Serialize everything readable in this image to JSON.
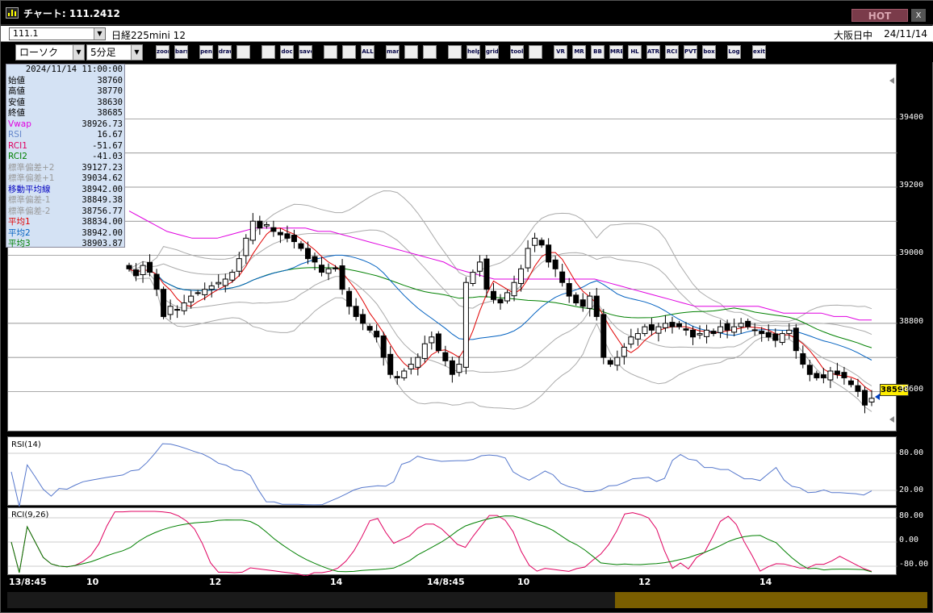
{
  "window": {
    "title": "チャート: 111.2412",
    "hot_label": "HOT",
    "close_label": "x"
  },
  "header": {
    "symbol_code": "111.1",
    "symbol_name": "日経225mini 12",
    "exchange": "大阪日中",
    "date": "24/11/14"
  },
  "toolbar": {
    "chart_type": "ローソク",
    "timeframe": "5分足",
    "buttons": [
      "zoom",
      "bars",
      "pen",
      "draw",
      "arrow",
      "refresh",
      "doc",
      "save",
      "candle-a",
      "candle-b",
      "ALL",
      "mark",
      "search",
      "chart",
      "scissors",
      "help",
      "grid",
      "tool",
      "palette",
      "VR",
      "MR",
      "BB",
      "MRE",
      "HL",
      "ATR",
      "RCI",
      "PVT",
      "box",
      "Log",
      "exit"
    ]
  },
  "info_panel": {
    "timestamp": "2024/11/14 11:00:00",
    "rows": [
      {
        "label": "始値",
        "value": "38760",
        "color": "#000000"
      },
      {
        "label": "高値",
        "value": "38770",
        "color": "#000000"
      },
      {
        "label": "安値",
        "value": "38630",
        "color": "#000000"
      },
      {
        "label": "終値",
        "value": "38685",
        "color": "#000000"
      },
      {
        "label": "Vwap",
        "value": "38926.73",
        "color": "#e000e0"
      },
      {
        "label": "RSI",
        "value": "16.67",
        "color": "#6688cc"
      },
      {
        "label": "RCI1",
        "value": "-51.67",
        "color": "#e00060"
      },
      {
        "label": "RCI2",
        "value": "-41.03",
        "color": "#008000"
      },
      {
        "label": "標準偏差+2",
        "value": "39127.23",
        "color": "#9a9a9a"
      },
      {
        "label": "標準偏差+1",
        "value": "39034.62",
        "color": "#9a9a9a"
      },
      {
        "label": "移動平均線",
        "value": "38942.00",
        "color": "#0000c0"
      },
      {
        "label": "標準偏差-1",
        "value": "38849.38",
        "color": "#9a9a9a"
      },
      {
        "label": "標準偏差-2",
        "value": "38756.77",
        "color": "#9a9a9a"
      },
      {
        "label": "平均1",
        "value": "38834.00",
        "color": "#e00000"
      },
      {
        "label": "平均2",
        "value": "38942.00",
        "color": "#0060c0"
      },
      {
        "label": "平均3",
        "value": "38903.87",
        "color": "#008000"
      }
    ]
  },
  "price_axis": [
    "39400",
    "39200",
    "39000",
    "38800",
    "38600"
  ],
  "last_price": "38590",
  "rsi_panel": {
    "label": "RSI(14)",
    "axis": [
      "80.00",
      "20.00"
    ]
  },
  "rci_panel": {
    "label": "RCI(9,26)",
    "axis": [
      "80.00",
      "0.00",
      "-80.00"
    ]
  },
  "time_axis": [
    "13/8:45",
    "10",
    "12",
    "14",
    "14/8:45",
    "10",
    "12",
    "14"
  ],
  "chart_data": {
    "type": "candlestick",
    "ylim": [
      38480,
      39560
    ],
    "closes": [
      38960,
      38940,
      38970,
      38950,
      38900,
      38820,
      38850,
      38840,
      38860,
      38880,
      38890,
      38900,
      38910,
      38920,
      38930,
      38950,
      38990,
      39050,
      39100,
      39080,
      39090,
      39070,
      39060,
      39050,
      39040,
      39020,
      38990,
      38980,
      38950,
      38960,
      38960,
      38900,
      38850,
      38820,
      38800,
      38780,
      38760,
      38700,
      38650,
      38640,
      38660,
      38680,
      38700,
      38740,
      38760,
      38720,
      38690,
      38650,
      38680,
      38920,
      38950,
      38980,
      38900,
      38870,
      38860,
      38890,
      38920,
      38960,
      39020,
      39050,
      39030,
      38980,
      38960,
      38920,
      38880,
      38860,
      38850,
      38880,
      38820,
      38700,
      38680,
      38700,
      38730,
      38760,
      38770,
      38790,
      38780,
      38790,
      38800,
      38790,
      38790,
      38780,
      38760,
      38770,
      38780,
      38770,
      38790,
      38780,
      38790,
      38800,
      38790,
      38780,
      38770,
      38760,
      38750,
      38770,
      38780,
      38720,
      38680,
      38650,
      38640,
      38640,
      38660,
      38650,
      38640,
      38620,
      38600,
      38560,
      38580
    ],
    "vwap": [
      39130,
      39110,
      39090,
      39070,
      39060,
      39050,
      39050,
      39050,
      39060,
      39070,
      39080,
      39080,
      39080,
      39080,
      39080,
      39070,
      39070,
      39060,
      39050,
      39040,
      39030,
      39020,
      39010,
      39000,
      38990,
      38980,
      38960,
      38950,
      38940,
      38930,
      38930,
      38930,
      38930,
      38930,
      38930,
      38930,
      38930,
      38930,
      38920,
      38910,
      38900,
      38890,
      38880,
      38870,
      38860,
      38850,
      38850,
      38850,
      38850,
      38850,
      38850,
      38840,
      38830,
      38830,
      38830,
      38830,
      38820,
      38820,
      38810,
      38810
    ],
    "ma1_color": "#e00000",
    "ma2_color": "#0060c0",
    "ma3_color": "#008000",
    "bb_color": "#aaaaaa",
    "vwap_color": "#e000e0"
  },
  "colors": {
    "up": "#ffffff",
    "down": "#000000"
  }
}
